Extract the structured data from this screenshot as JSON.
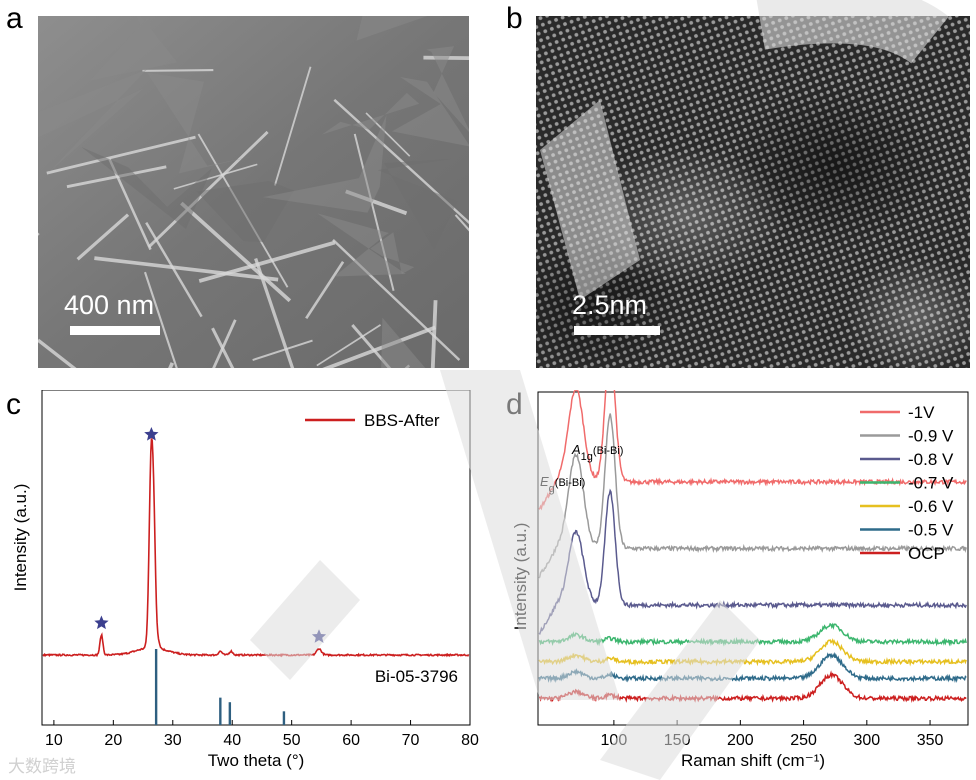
{
  "panels": {
    "a": {
      "letter": "a",
      "scale_label": "400 nm"
    },
    "b": {
      "letter": "b",
      "scale_label": "2.5nm"
    },
    "c": {
      "letter": "c"
    },
    "d": {
      "letter": "d"
    }
  },
  "watermark": "大数跨境",
  "chart_data": [
    {
      "type": "line",
      "panel": "c",
      "xlabel": "Two theta (°)",
      "ylabel": "Intensity (a.u.)",
      "xlim": [
        8,
        80
      ],
      "xticks": [
        10,
        20,
        30,
        40,
        50,
        60,
        70,
        80
      ],
      "series": [
        {
          "name": "BBS-After",
          "color": "#cc1f1f",
          "baseline": 0.18,
          "peaks": [
            {
              "x": 18.0,
              "h": 0.08,
              "w": 0.25
            },
            {
              "x": 26.4,
              "h": 0.8,
              "w": 0.35
            },
            {
              "x": 26.9,
              "h": 0.25,
              "w": 0.25
            },
            {
              "x": 27.4,
              "h": 0.04,
              "w": 0.3
            },
            {
              "x": 38.0,
              "h": 0.015,
              "w": 0.3
            },
            {
              "x": 39.8,
              "h": 0.015,
              "w": 0.3
            },
            {
              "x": 54.6,
              "h": 0.025,
              "w": 0.4
            }
          ]
        }
      ],
      "reference": {
        "name": "Bi-05-3796",
        "color": "#2e5f80",
        "lines": [
          {
            "x": 27.2,
            "h": 1.0
          },
          {
            "x": 38.0,
            "h": 0.36
          },
          {
            "x": 39.6,
            "h": 0.3
          },
          {
            "x": 48.7,
            "h": 0.18
          }
        ]
      },
      "markers": [
        {
          "x": 18.0,
          "symbol": "star"
        },
        {
          "x": 26.4,
          "symbol": "star"
        },
        {
          "x": 54.6,
          "symbol": "star"
        }
      ],
      "legend_position": "top-right"
    },
    {
      "type": "line",
      "panel": "d",
      "xlabel": "Raman shift (cm⁻¹)",
      "ylabel": "Intensity (a.u.)",
      "xlim": [
        40,
        380
      ],
      "xticks": [
        100,
        150,
        200,
        250,
        300,
        350
      ],
      "annotations": [
        {
          "text": "E",
          "sub": "g",
          "rest": "(Bi-Bi)",
          "x": 70
        },
        {
          "text": "A",
          "sub": "1g",
          "rest": "(Bi-Bi)",
          "x": 97
        }
      ],
      "series": [
        {
          "name": "-1V",
          "color": "#f06b6b",
          "offset": 0.73,
          "peaks": [
            {
              "x": 70,
              "h": 0.28
            },
            {
              "x": 97,
              "h": 0.4
            },
            {
              "x": 272,
              "h": 0.0
            }
          ]
        },
        {
          "name": "-0.9 V",
          "color": "#9a9a9a",
          "offset": 0.53,
          "peaks": [
            {
              "x": 70,
              "h": 0.28
            },
            {
              "x": 97,
              "h": 0.4
            },
            {
              "x": 272,
              "h": 0.0
            }
          ]
        },
        {
          "name": "-0.8 V",
          "color": "#5a5a8e",
          "offset": 0.36,
          "peaks": [
            {
              "x": 70,
              "h": 0.22
            },
            {
              "x": 97,
              "h": 0.34
            },
            {
              "x": 272,
              "h": 0.0
            }
          ]
        },
        {
          "name": "-0.7 V",
          "color": "#3cb66e",
          "offset": 0.25,
          "peaks": [
            {
              "x": 70,
              "h": 0.02
            },
            {
              "x": 97,
              "h": 0.01
            },
            {
              "x": 272,
              "h": 0.05
            }
          ]
        },
        {
          "name": "-0.6 V",
          "color": "#e6c020",
          "offset": 0.19,
          "peaks": [
            {
              "x": 70,
              "h": 0.02
            },
            {
              "x": 97,
              "h": 0.01
            },
            {
              "x": 272,
              "h": 0.06
            }
          ]
        },
        {
          "name": "-0.5 V",
          "color": "#2f6b8a",
          "offset": 0.14,
          "peaks": [
            {
              "x": 70,
              "h": 0.02
            },
            {
              "x": 97,
              "h": 0.01
            },
            {
              "x": 272,
              "h": 0.07
            }
          ]
        },
        {
          "name": "OCP",
          "color": "#cc1f1f",
          "offset": 0.08,
          "peaks": [
            {
              "x": 70,
              "h": 0.02
            },
            {
              "x": 97,
              "h": 0.01
            },
            {
              "x": 272,
              "h": 0.07
            }
          ]
        }
      ],
      "legend_position": "top-right"
    }
  ]
}
